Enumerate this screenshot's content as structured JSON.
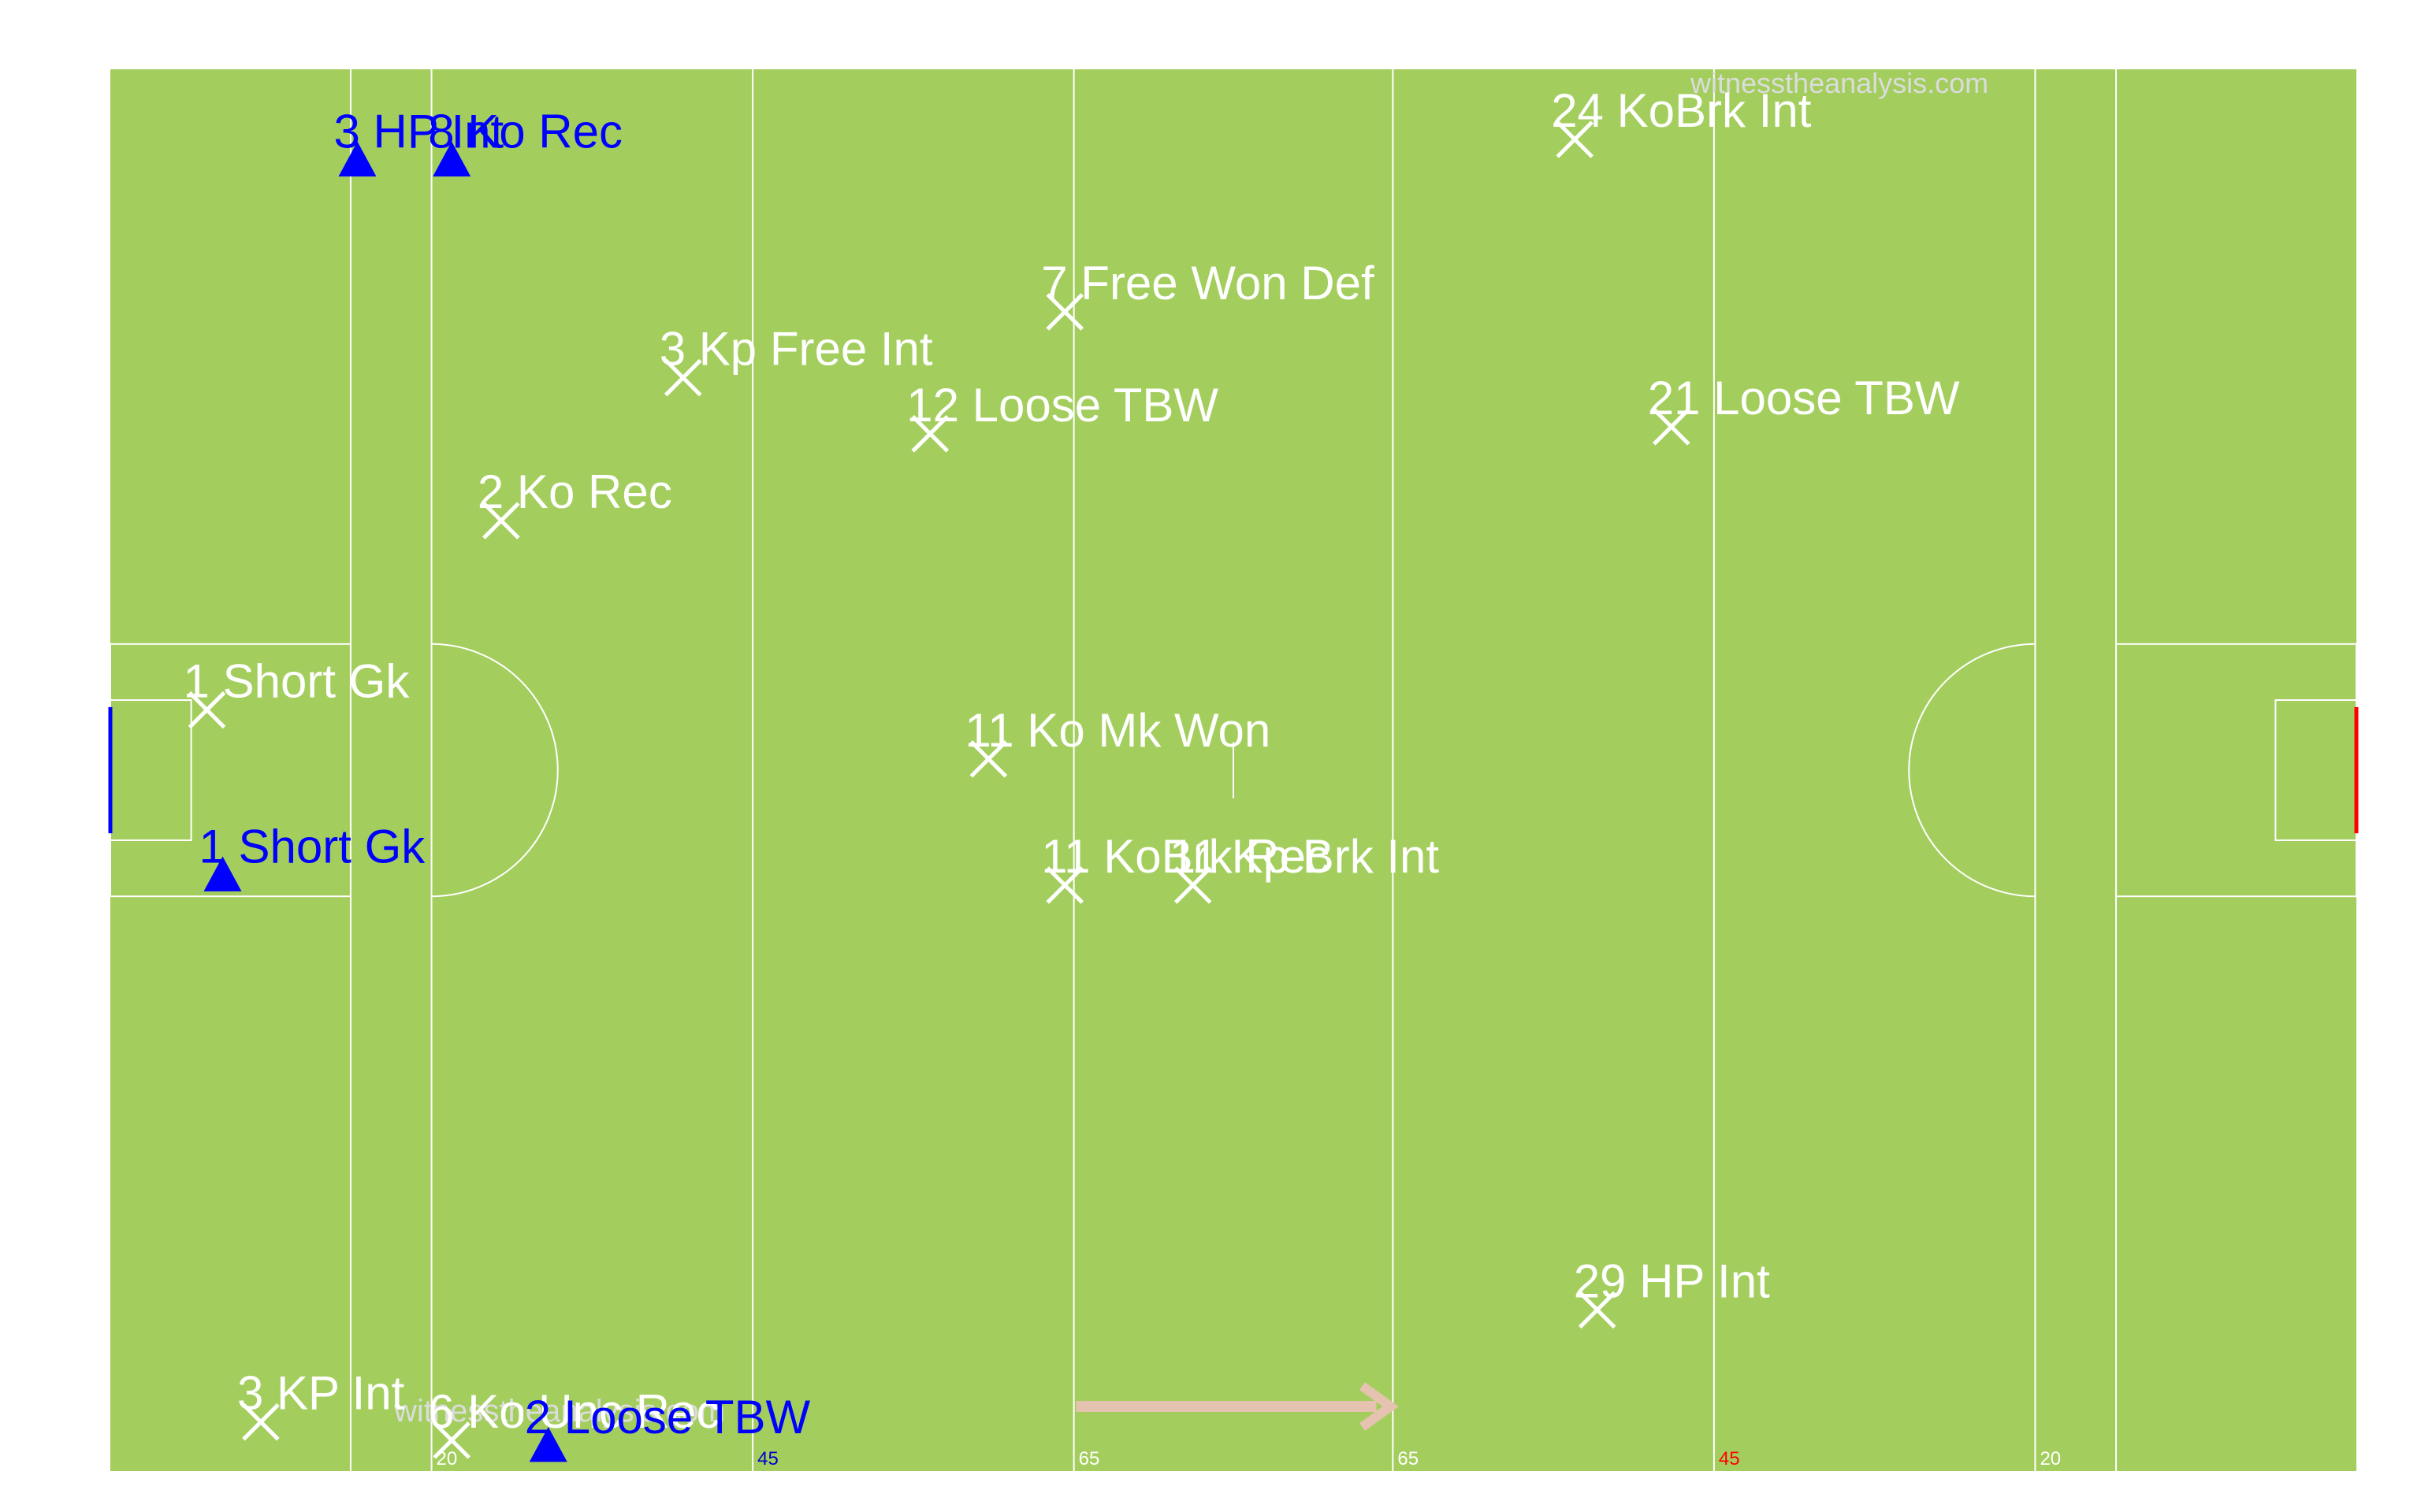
{
  "colors": {
    "pitch": "#a3ce5e",
    "line": "#ffffff",
    "other_team": "#ffffff",
    "own_team": "#0000ff",
    "own_goal": "#0000ff",
    "opp_goal": "#ff0000",
    "arrow": "#e6c3b0",
    "watermark": "#dcdcdc",
    "tick_own": "#0000cc",
    "tick_opp": "#ff0000",
    "tick_neutral": "#ffffff"
  },
  "watermark": "witnesstheanalysis.com",
  "direction_arrow": {
    "from_x": 0.43,
    "to_x": 0.57
  },
  "chart_data": {
    "type": "scatter",
    "title": "",
    "xlabel": "",
    "ylabel": "",
    "xlim": [
      0,
      1
    ],
    "ylim": [
      0,
      1
    ],
    "pitch_lines": [
      {
        "x": 0.107,
        "label": ""
      },
      {
        "x": 0.143,
        "label": "20"
      },
      {
        "x": 0.286,
        "label": "45"
      },
      {
        "x": 0.429,
        "label": "65"
      },
      {
        "x": 0.571,
        "label": "65"
      },
      {
        "x": 0.714,
        "label": "45"
      },
      {
        "x": 0.857,
        "label": "20"
      },
      {
        "x": 0.893,
        "label": ""
      }
    ],
    "series": [
      {
        "name": "",
        "marker": "x",
        "points": [
          {
            "x": 0.652,
            "y": 0.95,
            "label": "24 KoBrk Int"
          },
          {
            "x": 0.425,
            "y": 0.827,
            "label": "7 Free Won Def"
          },
          {
            "x": 0.255,
            "y": 0.78,
            "label": "3 Kp Free Int"
          },
          {
            "x": 0.365,
            "y": 0.74,
            "label": "12 Loose TBW"
          },
          {
            "x": 0.695,
            "y": 0.745,
            "label": "21 Loose TBW"
          },
          {
            "x": 0.174,
            "y": 0.678,
            "label": "2 Ko Rec"
          },
          {
            "x": 0.043,
            "y": 0.543,
            "label": "1 Short Gk"
          },
          {
            "x": 0.391,
            "y": 0.508,
            "label": "11 Ko Mk Won"
          },
          {
            "x": 0.482,
            "y": 0.418,
            "label": "11 Kp Brk Int"
          },
          {
            "x": 0.425,
            "y": 0.418,
            "label": "11 KoBrk Rec"
          },
          {
            "x": 0.662,
            "y": 0.115,
            "label": "29 HP Int"
          },
          {
            "x": 0.067,
            "y": 0.035,
            "label": "3 KP Int"
          },
          {
            "x": 0.152,
            "y": 0.022,
            "label": "6 Ko Unc Rec"
          }
        ]
      },
      {
        "name": "",
        "marker": "triangle",
        "points": [
          {
            "x": 0.11,
            "y": 0.935,
            "label": "3 HP Int"
          },
          {
            "x": 0.152,
            "y": 0.935,
            "label": "8 Ko Rec"
          },
          {
            "x": 0.05,
            "y": 0.425,
            "label": "1 Short Gk"
          },
          {
            "x": 0.195,
            "y": 0.018,
            "label": "2 Loose TBW"
          }
        ]
      }
    ]
  }
}
